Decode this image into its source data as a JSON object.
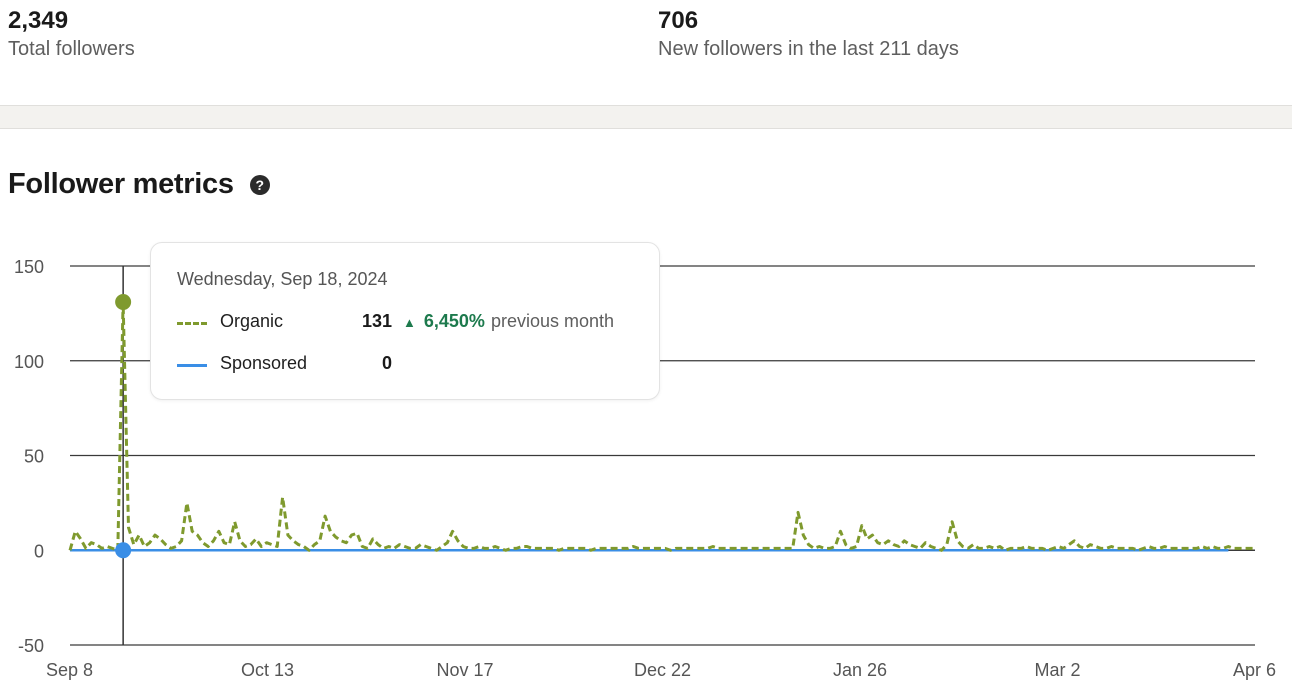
{
  "stats": {
    "total": {
      "value": "2,349",
      "label": "Total followers"
    },
    "new": {
      "value": "706",
      "label": "New followers in the last 211 days"
    }
  },
  "section": {
    "title": "Follower metrics",
    "help_icon": "question-circle-icon",
    "help_glyph": "?"
  },
  "tooltip": {
    "date": "Wednesday, Sep 18, 2024",
    "rows": [
      {
        "name": "Organic",
        "value": "131",
        "change": "6,450%",
        "change_suffix": "previous month",
        "arrow": "▲"
      },
      {
        "name": "Sponsored",
        "value": "0"
      }
    ]
  },
  "colors": {
    "organic": "#7f9a2e",
    "sponsored": "#3a8ee6",
    "positive": "#1d7a4d",
    "grid": "#3a3a3a"
  },
  "chart_data": {
    "type": "line",
    "title": "Follower metrics",
    "ylim": [
      -50,
      150
    ],
    "yticks": [
      150,
      100,
      50,
      0,
      -50
    ],
    "x_start": "2024-09-08",
    "x_tick_labels": [
      "Sep 8",
      "Oct 13",
      "Nov 17",
      "Dec 22",
      "Jan 26",
      "Mar 2",
      "Apr 6"
    ],
    "highlight_index": 10,
    "series": [
      {
        "name": "Organic",
        "style": "dashed",
        "values": [
          0,
          10,
          6,
          1,
          4,
          3,
          1,
          2,
          1,
          0,
          131,
          12,
          3,
          8,
          2,
          4,
          8,
          6,
          3,
          1,
          2,
          5,
          25,
          10,
          8,
          4,
          2,
          5,
          10,
          4,
          3,
          15,
          5,
          2,
          3,
          6,
          2,
          4,
          3,
          2,
          28,
          8,
          5,
          3,
          2,
          0,
          3,
          5,
          18,
          10,
          7,
          5,
          4,
          8,
          9,
          2,
          1,
          6,
          3,
          1,
          2,
          1,
          3,
          2,
          1,
          1,
          3,
          2,
          1,
          0,
          2,
          4,
          10,
          5,
          2,
          1,
          1,
          2,
          1,
          1,
          2,
          1,
          0,
          1,
          1,
          2,
          2,
          1,
          1,
          1,
          1,
          1,
          0,
          1,
          1,
          1,
          1,
          1,
          0,
          1,
          1,
          1,
          1,
          1,
          1,
          1,
          2,
          1,
          1,
          1,
          1,
          1,
          1,
          0,
          1,
          1,
          1,
          1,
          1,
          1,
          1,
          2,
          1,
          1,
          1,
          1,
          1,
          1,
          1,
          1,
          1,
          1,
          1,
          1,
          1,
          1,
          1,
          20,
          8,
          3,
          1,
          2,
          1,
          1,
          2,
          10,
          3,
          1,
          2,
          13,
          6,
          8,
          4,
          3,
          5,
          3,
          2,
          5,
          3,
          2,
          1,
          4,
          2,
          1,
          0,
          3,
          15,
          5,
          2,
          1,
          3,
          1,
          1,
          2,
          1,
          2,
          0,
          1,
          1,
          1,
          2,
          1,
          1,
          1,
          0,
          1,
          2,
          1,
          3,
          5,
          2,
          1,
          3,
          2,
          1,
          1,
          2,
          1,
          1,
          1,
          1,
          0,
          1,
          2,
          1,
          1,
          2,
          1,
          1,
          1,
          1,
          1,
          1,
          2,
          1,
          2,
          1,
          1,
          2,
          1,
          1,
          1,
          1,
          1
        ]
      },
      {
        "name": "Sponsored",
        "style": "solid",
        "values": [
          0,
          0,
          0,
          0,
          0,
          0,
          0,
          0,
          0,
          0,
          0,
          0,
          0,
          0,
          0,
          0,
          0,
          0,
          0,
          0,
          0,
          0,
          0,
          0,
          0,
          0,
          0,
          0,
          0,
          0,
          0,
          0,
          0,
          0,
          0,
          0,
          0,
          0,
          0,
          0,
          0,
          0,
          0,
          0,
          0,
          0,
          0,
          0,
          0,
          0,
          0,
          0,
          0,
          0,
          0,
          0,
          0,
          0,
          0,
          0,
          0,
          0,
          0,
          0,
          0,
          0,
          0,
          0,
          0,
          0,
          0,
          0,
          0,
          0,
          0,
          0,
          0,
          0,
          0,
          0,
          0,
          0,
          0,
          0,
          0,
          0,
          0,
          0,
          0,
          0,
          0,
          0,
          0,
          0,
          0,
          0,
          0,
          0,
          0,
          0,
          0,
          0,
          0,
          0,
          0,
          0,
          0,
          0,
          0,
          0,
          0,
          0,
          0,
          0,
          0,
          0,
          0,
          0,
          0,
          0,
          0,
          0,
          0,
          0,
          0,
          0,
          0,
          0,
          0,
          0,
          0,
          0,
          0,
          0,
          0,
          0,
          0,
          0,
          0,
          0,
          0,
          0,
          0,
          0,
          0,
          0,
          0,
          0,
          0,
          0,
          0,
          0,
          0,
          0,
          0,
          0,
          0,
          0,
          0,
          0,
          0,
          0,
          0,
          0,
          0,
          0,
          0,
          0,
          0,
          0,
          0,
          0,
          0,
          0,
          0,
          0,
          0,
          0,
          0,
          0,
          0,
          0,
          0,
          0,
          0,
          0,
          0,
          0,
          0,
          0,
          0,
          0,
          0,
          0,
          0,
          0,
          0,
          0,
          0,
          0,
          0,
          0,
          0,
          0,
          0,
          0,
          0,
          0,
          0,
          0,
          0,
          0,
          0,
          0,
          0,
          0,
          0,
          0,
          0
        ]
      }
    ]
  }
}
